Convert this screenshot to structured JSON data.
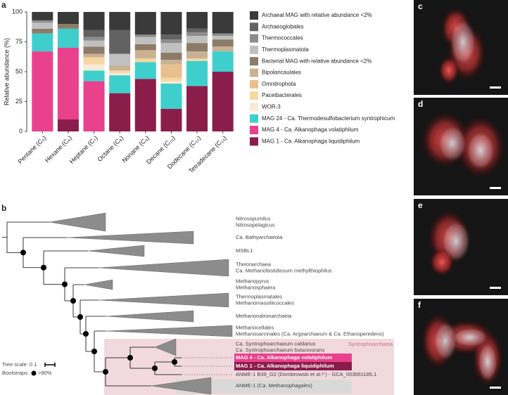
{
  "chart_data": {
    "type": "bar",
    "stacked": true,
    "panel_label": "a",
    "ylabel": "Relative abundance (%)",
    "categories": [
      "Pentane (C₅)",
      "Hexane (C₆)",
      "Heptane (C₇)",
      "Octane (C₈)",
      "Nonane (C₉)",
      "Decane (C₁₀)",
      "Dodecane (C₁₂)",
      "Tetradecane (C₁₄)"
    ],
    "series": [
      {
        "name": "MAG 1 - Ca. Alkanophaga liquidiphilum",
        "color": "#8b1d4b",
        "values": [
          0,
          10,
          0,
          32,
          44,
          19,
          38,
          50
        ]
      },
      {
        "name": "MAG 4 - Ca. Alkanophaga volatiphilum",
        "color": "#e9418b",
        "values": [
          67,
          60,
          42,
          0,
          0,
          0,
          0,
          0
        ]
      },
      {
        "name": "MAG 24 - Ca. Thermodesulfobacterium syntrophicum",
        "color": "#3ecfcc",
        "values": [
          15,
          16,
          9,
          15,
          14,
          21,
          21,
          17
        ]
      },
      {
        "name": "WOR-3",
        "color": "#f7ead6",
        "values": [
          0,
          0,
          5,
          2,
          0,
          2,
          0,
          0
        ]
      },
      {
        "name": "Paceibacterales",
        "color": "#f6d6a2",
        "values": [
          0,
          0,
          6,
          2,
          3,
          3,
          2,
          0
        ]
      },
      {
        "name": "Omnitrophota",
        "color": "#e9c08d",
        "values": [
          0,
          0,
          0,
          0,
          0,
          11,
          0,
          0
        ]
      },
      {
        "name": "Bipolaricaulales",
        "color": "#c9b293",
        "values": [
          0,
          0,
          3,
          4,
          7,
          4,
          6,
          4
        ]
      },
      {
        "name": "Bacterial MAG with relative abundance <2%",
        "color": "#8b7b68",
        "values": [
          4,
          4,
          6,
          0,
          5,
          6,
          7,
          6
        ]
      },
      {
        "name": "Thermoplasmatota",
        "color": "#c0c0c0",
        "values": [
          5,
          0,
          5,
          10,
          6,
          8,
          6,
          3
        ]
      },
      {
        "name": "Thermococcales",
        "color": "#8d8d8d",
        "values": [
          2,
          0,
          3,
          0,
          2,
          3,
          3,
          2
        ]
      },
      {
        "name": "Archaeoglobales",
        "color": "#626262",
        "values": [
          0,
          0,
          6,
          20,
          0,
          4,
          3,
          0
        ]
      },
      {
        "name": "Archaeal MAG with relative abundance <2%",
        "color": "#3a3a3a",
        "values": [
          7,
          10,
          15,
          15,
          19,
          19,
          14,
          18
        ]
      }
    ],
    "ylim": [
      0,
      100
    ],
    "yticks": [
      0,
      25,
      50,
      75,
      100
    ]
  },
  "tree": {
    "panel_label": "b",
    "group_label": "Syntrophoarchaeia",
    "scale_label": "Tree scale: 0.1",
    "bootstrap_label": "Bootstraps:",
    "bootstrap_threshold": ">90%",
    "clades": [
      {
        "lines": [
          "Nitrosopumilus",
          "Nitrosopelagicus"
        ]
      },
      {
        "lines": [
          "Ca. Bathyarchaeota"
        ]
      },
      {
        "lines": [
          "MSBL1"
        ]
      },
      {
        "lines": [
          "Theionarchaea",
          "Ca. Methanofastidiosum methylthiophilus"
        ]
      },
      {
        "lines": [
          "Methanopyrus",
          "Methanosphaera"
        ]
      },
      {
        "lines": [
          "Thermoplasmatales",
          "Methanomassiliicoccales"
        ]
      },
      {
        "lines": [
          "Methanonatronarchaeia"
        ]
      },
      {
        "lines": [
          "Methanocellales",
          "Methanosarcinales (Ca. Argoarchaeum & Ca. Ethanoperedens)"
        ]
      },
      {
        "lines": [
          "Ca. Syntrophoarchaeum caldarius",
          "Ca. Syntrophoarchaeum butanivorans"
        ]
      },
      {
        "lines": [
          "MAG 4 - Ca. Alkanophaga volatiphilum"
        ]
      },
      {
        "lines": [
          "MAG 1 - Ca. Alkanophaga liquidiphilum"
        ]
      },
      {
        "lines": [
          "ANME-1 B39_G2 (Dombrowski et al.²⁷) - GCA_003661185.1"
        ]
      },
      {
        "lines": [
          "ANME-1 (Ca. Methanophagales)"
        ]
      }
    ]
  },
  "images": [
    {
      "label": "c"
    },
    {
      "label": "d"
    },
    {
      "label": "e"
    },
    {
      "label": "f"
    }
  ]
}
